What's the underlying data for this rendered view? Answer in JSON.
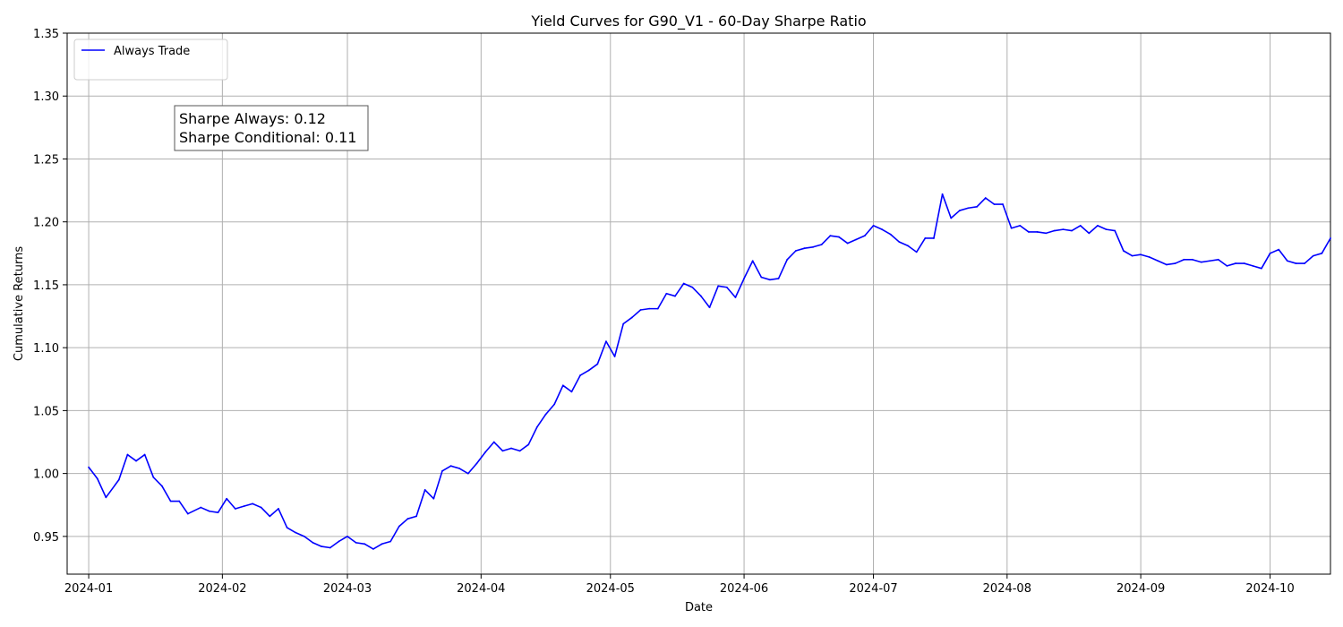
{
  "chart_data": {
    "type": "line",
    "title": "Yield Curves for G90_V1 - 60-Day Sharpe Ratio",
    "xlabel": "Date",
    "ylabel": "Cumulative Returns",
    "xlim": [
      "2023-12-27",
      "2024-10-15"
    ],
    "ylim": [
      0.92,
      1.35
    ],
    "grid": true,
    "legend_position": "top-left",
    "x_ticks": [
      "2024-01",
      "2024-02",
      "2024-03",
      "2024-04",
      "2024-05",
      "2024-06",
      "2024-07",
      "2024-08",
      "2024-09",
      "2024-10"
    ],
    "y_ticks": [
      "0.95",
      "1.00",
      "1.05",
      "1.10",
      "1.15",
      "1.20",
      "1.25",
      "1.30",
      "1.35"
    ],
    "annotation": {
      "line1": "Sharpe Always: 0.12",
      "line2": "Sharpe Conditional: 0.11"
    },
    "series": [
      {
        "name": "Always Trade",
        "color": "#0000ff",
        "points": [
          [
            "2024-01-01",
            1.005
          ],
          [
            "2024-01-03",
            0.996
          ],
          [
            "2024-01-05",
            0.981
          ],
          [
            "2024-01-08",
            0.995
          ],
          [
            "2024-01-10",
            1.015
          ],
          [
            "2024-01-12",
            1.01
          ],
          [
            "2024-01-14",
            1.015
          ],
          [
            "2024-01-16",
            0.997
          ],
          [
            "2024-01-18",
            0.99
          ],
          [
            "2024-01-20",
            0.978
          ],
          [
            "2024-01-22",
            0.978
          ],
          [
            "2024-01-24",
            0.968
          ],
          [
            "2024-01-27",
            0.973
          ],
          [
            "2024-01-29",
            0.97
          ],
          [
            "2024-01-31",
            0.969
          ],
          [
            "2024-02-02",
            0.98
          ],
          [
            "2024-02-04",
            0.972
          ],
          [
            "2024-02-06",
            0.974
          ],
          [
            "2024-02-08",
            0.976
          ],
          [
            "2024-02-10",
            0.973
          ],
          [
            "2024-02-12",
            0.966
          ],
          [
            "2024-02-14",
            0.972
          ],
          [
            "2024-02-16",
            0.957
          ],
          [
            "2024-02-18",
            0.953
          ],
          [
            "2024-02-20",
            0.95
          ],
          [
            "2024-02-22",
            0.945
          ],
          [
            "2024-02-24",
            0.942
          ],
          [
            "2024-02-26",
            0.941
          ],
          [
            "2024-02-28",
            0.946
          ],
          [
            "2024-03-01",
            0.95
          ],
          [
            "2024-03-03",
            0.945
          ],
          [
            "2024-03-05",
            0.944
          ],
          [
            "2024-03-07",
            0.94
          ],
          [
            "2024-03-09",
            0.944
          ],
          [
            "2024-03-11",
            0.946
          ],
          [
            "2024-03-13",
            0.958
          ],
          [
            "2024-03-15",
            0.964
          ],
          [
            "2024-03-17",
            0.966
          ],
          [
            "2024-03-19",
            0.987
          ],
          [
            "2024-03-21",
            0.98
          ],
          [
            "2024-03-23",
            1.002
          ],
          [
            "2024-03-25",
            1.006
          ],
          [
            "2024-03-27",
            1.004
          ],
          [
            "2024-03-29",
            1.0
          ],
          [
            "2024-03-31",
            1.008
          ],
          [
            "2024-04-02",
            1.017
          ],
          [
            "2024-04-04",
            1.025
          ],
          [
            "2024-04-06",
            1.018
          ],
          [
            "2024-04-08",
            1.02
          ],
          [
            "2024-04-10",
            1.018
          ],
          [
            "2024-04-12",
            1.023
          ],
          [
            "2024-04-14",
            1.037
          ],
          [
            "2024-04-16",
            1.047
          ],
          [
            "2024-04-18",
            1.055
          ],
          [
            "2024-04-20",
            1.07
          ],
          [
            "2024-04-22",
            1.065
          ],
          [
            "2024-04-24",
            1.078
          ],
          [
            "2024-04-26",
            1.082
          ],
          [
            "2024-04-28",
            1.087
          ],
          [
            "2024-04-30",
            1.105
          ],
          [
            "2024-05-02",
            1.093
          ],
          [
            "2024-05-04",
            1.119
          ],
          [
            "2024-05-06",
            1.124
          ],
          [
            "2024-05-08",
            1.13
          ],
          [
            "2024-05-10",
            1.131
          ],
          [
            "2024-05-12",
            1.131
          ],
          [
            "2024-05-14",
            1.143
          ],
          [
            "2024-05-16",
            1.141
          ],
          [
            "2024-05-18",
            1.151
          ],
          [
            "2024-05-20",
            1.148
          ],
          [
            "2024-05-22",
            1.141
          ],
          [
            "2024-05-24",
            1.132
          ],
          [
            "2024-05-26",
            1.149
          ],
          [
            "2024-05-28",
            1.148
          ],
          [
            "2024-05-30",
            1.14
          ],
          [
            "2024-06-01",
            1.155
          ],
          [
            "2024-06-03",
            1.169
          ],
          [
            "2024-06-05",
            1.156
          ],
          [
            "2024-06-07",
            1.154
          ],
          [
            "2024-06-09",
            1.155
          ],
          [
            "2024-06-11",
            1.17
          ],
          [
            "2024-06-13",
            1.177
          ],
          [
            "2024-06-15",
            1.179
          ],
          [
            "2024-06-17",
            1.18
          ],
          [
            "2024-06-19",
            1.182
          ],
          [
            "2024-06-21",
            1.189
          ],
          [
            "2024-06-23",
            1.188
          ],
          [
            "2024-06-25",
            1.183
          ],
          [
            "2024-06-27",
            1.186
          ],
          [
            "2024-06-29",
            1.189
          ],
          [
            "2024-07-01",
            1.197
          ],
          [
            "2024-07-03",
            1.194
          ],
          [
            "2024-07-05",
            1.19
          ],
          [
            "2024-07-07",
            1.184
          ],
          [
            "2024-07-09",
            1.181
          ],
          [
            "2024-07-11",
            1.176
          ],
          [
            "2024-07-13",
            1.187
          ],
          [
            "2024-07-15",
            1.187
          ],
          [
            "2024-07-17",
            1.222
          ],
          [
            "2024-07-19",
            1.203
          ],
          [
            "2024-07-21",
            1.209
          ],
          [
            "2024-07-23",
            1.211
          ],
          [
            "2024-07-25",
            1.212
          ],
          [
            "2024-07-27",
            1.219
          ],
          [
            "2024-07-29",
            1.214
          ],
          [
            "2024-07-31",
            1.214
          ],
          [
            "2024-08-02",
            1.195
          ],
          [
            "2024-08-04",
            1.197
          ],
          [
            "2024-08-06",
            1.192
          ],
          [
            "2024-08-08",
            1.192
          ],
          [
            "2024-08-10",
            1.191
          ],
          [
            "2024-08-12",
            1.193
          ],
          [
            "2024-08-14",
            1.194
          ],
          [
            "2024-08-16",
            1.193
          ],
          [
            "2024-08-18",
            1.197
          ],
          [
            "2024-08-20",
            1.191
          ],
          [
            "2024-08-22",
            1.197
          ],
          [
            "2024-08-24",
            1.194
          ],
          [
            "2024-08-26",
            1.193
          ],
          [
            "2024-08-28",
            1.177
          ],
          [
            "2024-08-30",
            1.173
          ],
          [
            "2024-09-01",
            1.174
          ],
          [
            "2024-09-03",
            1.172
          ],
          [
            "2024-09-05",
            1.169
          ],
          [
            "2024-09-07",
            1.166
          ],
          [
            "2024-09-09",
            1.167
          ],
          [
            "2024-09-11",
            1.17
          ],
          [
            "2024-09-13",
            1.17
          ],
          [
            "2024-09-15",
            1.168
          ],
          [
            "2024-09-17",
            1.169
          ],
          [
            "2024-09-19",
            1.17
          ],
          [
            "2024-09-21",
            1.165
          ],
          [
            "2024-09-23",
            1.167
          ],
          [
            "2024-09-25",
            1.167
          ],
          [
            "2024-09-27",
            1.165
          ],
          [
            "2024-09-29",
            1.163
          ],
          [
            "2024-10-01",
            1.175
          ],
          [
            "2024-10-03",
            1.178
          ],
          [
            "2024-10-05",
            1.169
          ],
          [
            "2024-10-07",
            1.167
          ],
          [
            "2024-10-09",
            1.167
          ],
          [
            "2024-10-11",
            1.173
          ],
          [
            "2024-10-13",
            1.175
          ],
          [
            "2024-10-15",
            1.187
          ]
        ]
      }
    ]
  }
}
